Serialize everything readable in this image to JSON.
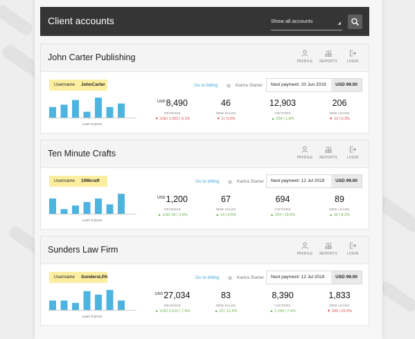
{
  "header": {
    "title": "Client accounts",
    "filter_value": "Show all accounts",
    "search_icon": "search-icon"
  },
  "icon_labels": {
    "profile": "PROFILE",
    "reports": "REPORTS",
    "login": "LOGIN"
  },
  "colors": {
    "bar": "#4db4e0",
    "up": "#6ab04c",
    "down": "#e04a4a",
    "username_bg": "#fbeea0",
    "link": "#3fa8d8"
  },
  "accounts": [
    {
      "name": "John Carter Publishing",
      "username_label": "Username",
      "username": "JohnCarter",
      "billing_link": "Go to billing",
      "plan": "Kartra Starter",
      "payment_text": "Next payment: 20 Jun 2019",
      "payment_amount": "USD 99.00",
      "chart_label_prefix": "LAST",
      "chart_label_num": "7",
      "chart_label_suffix": "DAYS",
      "chart_values": [
        0.45,
        0.55,
        0.75,
        0.25,
        0.85,
        0.45,
        0.6
      ],
      "metrics": [
        {
          "currency": "USD",
          "value": "8,490",
          "label": "REVENUE",
          "delta": "USD 1,302 | 6.1%",
          "trend": "down"
        },
        {
          "currency": "",
          "value": "46",
          "label": "NEW SALES",
          "delta": "3 | 5.5%",
          "trend": "down"
        },
        {
          "currency": "",
          "value": "12,903",
          "label": "VISITORS",
          "delta": "204 | 1.8%",
          "trend": "up"
        },
        {
          "currency": "",
          "value": "206",
          "label": "NEW LEADS",
          "delta": "12 | 5.3%",
          "trend": "down"
        }
      ]
    },
    {
      "name": "Ten Minute Crafts",
      "username_label": "Username",
      "username": "10Mcraft",
      "billing_link": "Go to billing",
      "plan": "Kartra Starter",
      "payment_text": "Next payment: 12 Jul 2019",
      "payment_amount": "USD 99.00",
      "chart_label_prefix": "LAST",
      "chart_label_num": "7",
      "chart_label_suffix": "DAYS",
      "chart_values": [
        0.65,
        0.2,
        0.35,
        0.5,
        0.65,
        0.4,
        0.85
      ],
      "metrics": [
        {
          "currency": "USD",
          "value": "1,200",
          "label": "REVENUE",
          "delta": "USD 45 | 3.8%",
          "trend": "up"
        },
        {
          "currency": "",
          "value": "67",
          "label": "NEW SALES",
          "delta": "14 | 9.5%",
          "trend": "up"
        },
        {
          "currency": "",
          "value": "694",
          "label": "VISITORS",
          "delta": "254 | 19.9%",
          "trend": "up"
        },
        {
          "currency": "",
          "value": "89",
          "label": "NEW LEADS",
          "delta": "36 | 8.2%",
          "trend": "up"
        }
      ]
    },
    {
      "name": "Sunders Law Firm",
      "username_label": "Username",
      "username": "SundersLPA",
      "billing_link": "Go to billing",
      "plan": "Kartra Starter",
      "payment_text": "Next payment: 12 Jul 2019",
      "payment_amount": "USD 99.00",
      "chart_label_prefix": "LAST",
      "chart_label_num": "7",
      "chart_label_suffix": "DAYS",
      "chart_values": [
        0.4,
        0.4,
        0.3,
        0.8,
        0.65,
        0.85,
        0.4
      ],
      "metrics": [
        {
          "currency": "USD",
          "value": "27,034",
          "label": "REVENUE",
          "delta": "USD 2,510 | 7.9%",
          "trend": "up"
        },
        {
          "currency": "",
          "value": "83",
          "label": "NEW SALES",
          "delta": "23 | 12.6%",
          "trend": "up"
        },
        {
          "currency": "",
          "value": "8,390",
          "label": "VISITORS",
          "delta": "1,244 | 7.4%",
          "trend": "up"
        },
        {
          "currency": "",
          "value": "1,833",
          "label": "NEW LEADS",
          "delta": "290 | 20.3%",
          "trend": "down"
        }
      ]
    }
  ]
}
